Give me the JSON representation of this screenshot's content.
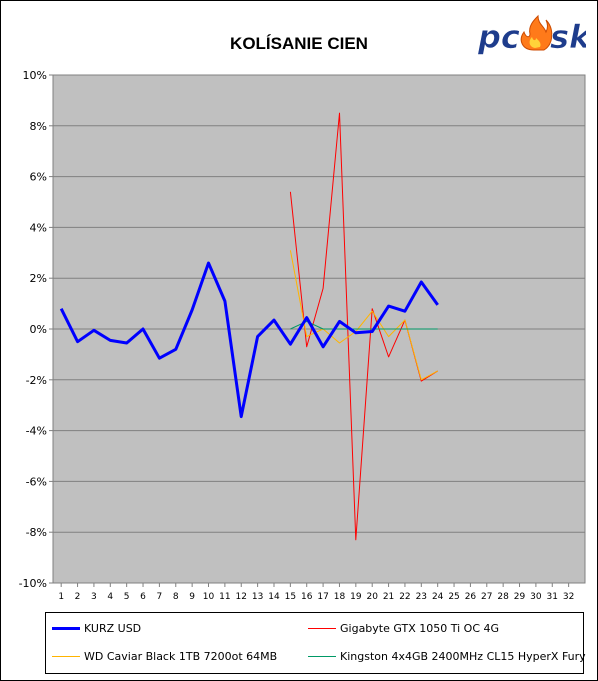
{
  "chart_data": {
    "type": "line",
    "title": "KOLÍSANIE CIEN",
    "logo_text": "pcesk",
    "x": [
      1,
      2,
      3,
      4,
      5,
      6,
      7,
      8,
      9,
      10,
      11,
      12,
      13,
      14,
      15,
      16,
      17,
      18,
      19,
      20,
      21,
      22,
      23,
      24,
      25,
      26,
      27,
      28,
      29,
      30,
      31,
      32
    ],
    "y_ticks": [
      "10%",
      "8%",
      "6%",
      "4%",
      "2%",
      "0%",
      "-2%",
      "-4%",
      "-6%",
      "-8%",
      "-10%"
    ],
    "ylim": [
      -10,
      10
    ],
    "y_unit": "%",
    "grid": true,
    "legend_position": "bottom",
    "series": [
      {
        "name": "KURZ USD",
        "color": "#0000ff",
        "x": [
          1,
          2,
          3,
          4,
          5,
          6,
          7,
          8,
          9,
          10,
          11,
          12,
          13,
          14,
          15,
          16,
          17,
          18,
          19,
          20,
          21,
          22,
          23,
          24
        ],
        "values": [
          0.8,
          -0.5,
          -0.05,
          -0.45,
          -0.55,
          0.0,
          -1.15,
          -0.8,
          0.75,
          2.6,
          1.1,
          -3.45,
          -0.3,
          0.35,
          -0.6,
          0.45,
          -0.7,
          0.3,
          -0.15,
          -0.1,
          0.9,
          0.7,
          1.85,
          0.95
        ]
      },
      {
        "name": "Gigabyte GTX 1050 Ti OC 4G",
        "color": "#ff0000",
        "x": [
          15,
          16,
          17,
          18,
          19,
          20,
          21,
          22,
          23,
          24
        ],
        "values": [
          5.4,
          -0.7,
          1.6,
          8.5,
          -8.3,
          0.8,
          -1.1,
          0.35,
          -2.05,
          -1.65
        ]
      },
      {
        "name": "WD Caviar Black 1TB 7200ot 64MB",
        "color": "#ffb400",
        "x": [
          15,
          16,
          17,
          18,
          19,
          20,
          21,
          22,
          23,
          24
        ],
        "values": [
          3.1,
          -0.3,
          0.0,
          -0.55,
          -0.1,
          0.7,
          -0.3,
          0.35,
          -2.0,
          -1.65
        ]
      },
      {
        "name": "Kingston 4x4GB 2400MHz CL15 HyperX Fury",
        "color": "#009966",
        "x": [
          15,
          16,
          17,
          18,
          19,
          20,
          21,
          22,
          23,
          24
        ],
        "values": [
          0.0,
          0.3,
          0.0,
          0.0,
          0.0,
          0.0,
          0.0,
          0.0,
          0.0,
          0.0
        ]
      }
    ]
  }
}
